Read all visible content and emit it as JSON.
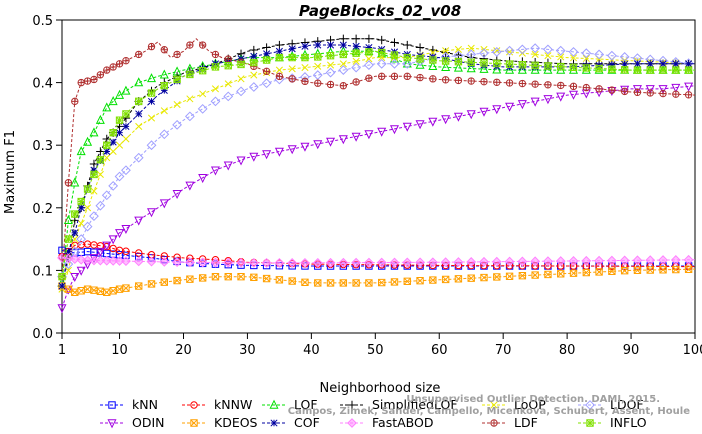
{
  "chart_data": {
    "type": "line",
    "title": "PageBlocks_02_v08",
    "xlabel": "Neighborhood size",
    "ylabel": "Maximum F1",
    "xlim": [
      1,
      100
    ],
    "ylim": [
      0,
      0.5
    ],
    "xticks": [
      1,
      10,
      20,
      30,
      40,
      50,
      60,
      70,
      80,
      90,
      100
    ],
    "yticks": [
      "0.0",
      "0.1",
      "0.2",
      "0.3",
      "0.4",
      "0.5"
    ],
    "grid": false,
    "legend_position": "bottom",
    "credit": [
      "Campos, Zimek, Sander, Campello, Micenkova, Schubert, Assent, Houle",
      "Unsupervised Outlier Detection. DAMI, 2015."
    ],
    "series": [
      {
        "name": "kNN",
        "color": "#0000ff",
        "marker": "square",
        "line": "dash",
        "points": [
          [
            1,
            0.132
          ],
          [
            2,
            0.13
          ],
          [
            3,
            0.128
          ],
          [
            5,
            0.13
          ],
          [
            8,
            0.127
          ],
          [
            10,
            0.125
          ],
          [
            15,
            0.12
          ],
          [
            20,
            0.113
          ],
          [
            25,
            0.11
          ],
          [
            30,
            0.108
          ],
          [
            40,
            0.107
          ],
          [
            60,
            0.107
          ],
          [
            80,
            0.107
          ],
          [
            100,
            0.107
          ]
        ]
      },
      {
        "name": "kNNW",
        "color": "#ff0000",
        "marker": "circle",
        "line": "dash",
        "points": [
          [
            1,
            0.122
          ],
          [
            2,
            0.13
          ],
          [
            3,
            0.14
          ],
          [
            5,
            0.142
          ],
          [
            8,
            0.138
          ],
          [
            10,
            0.132
          ],
          [
            15,
            0.125
          ],
          [
            20,
            0.12
          ],
          [
            25,
            0.117
          ],
          [
            30,
            0.113
          ],
          [
            40,
            0.11
          ],
          [
            60,
            0.108
          ],
          [
            80,
            0.107
          ],
          [
            100,
            0.106
          ]
        ]
      },
      {
        "name": "LOF",
        "color": "#00e000",
        "marker": "triangle",
        "line": "dash",
        "points": [
          [
            1,
            0.08
          ],
          [
            2,
            0.18
          ],
          [
            3,
            0.24
          ],
          [
            4,
            0.29
          ],
          [
            6,
            0.32
          ],
          [
            8,
            0.36
          ],
          [
            10,
            0.38
          ],
          [
            13,
            0.4
          ],
          [
            16,
            0.41
          ],
          [
            20,
            0.42
          ],
          [
            25,
            0.43
          ],
          [
            30,
            0.44
          ],
          [
            35,
            0.44
          ],
          [
            40,
            0.445
          ],
          [
            45,
            0.45
          ],
          [
            50,
            0.45
          ],
          [
            55,
            0.43
          ],
          [
            60,
            0.425
          ],
          [
            70,
            0.42
          ],
          [
            80,
            0.42
          ],
          [
            90,
            0.42
          ],
          [
            100,
            0.42
          ]
        ]
      },
      {
        "name": "SimplifiedLOF",
        "color": "#000000",
        "marker": "plus",
        "line": "dash",
        "points": [
          [
            1,
            0.075
          ],
          [
            2,
            0.12
          ],
          [
            3,
            0.18
          ],
          [
            4,
            0.2
          ],
          [
            6,
            0.27
          ],
          [
            8,
            0.31
          ],
          [
            10,
            0.33
          ],
          [
            13,
            0.37
          ],
          [
            16,
            0.395
          ],
          [
            20,
            0.415
          ],
          [
            25,
            0.43
          ],
          [
            30,
            0.45
          ],
          [
            35,
            0.46
          ],
          [
            40,
            0.465
          ],
          [
            45,
            0.47
          ],
          [
            50,
            0.47
          ],
          [
            55,
            0.46
          ],
          [
            60,
            0.45
          ],
          [
            65,
            0.44
          ],
          [
            70,
            0.435
          ],
          [
            80,
            0.43
          ],
          [
            90,
            0.43
          ],
          [
            100,
            0.43
          ]
        ]
      },
      {
        "name": "LoOP",
        "color": "#e8e800",
        "marker": "cross",
        "line": "dash",
        "points": [
          [
            1,
            0.07
          ],
          [
            2,
            0.1
          ],
          [
            3,
            0.15
          ],
          [
            5,
            0.2
          ],
          [
            8,
            0.28
          ],
          [
            10,
            0.3
          ],
          [
            13,
            0.33
          ],
          [
            16,
            0.35
          ],
          [
            20,
            0.37
          ],
          [
            25,
            0.39
          ],
          [
            30,
            0.41
          ],
          [
            35,
            0.42
          ],
          [
            40,
            0.425
          ],
          [
            45,
            0.43
          ],
          [
            50,
            0.44
          ],
          [
            55,
            0.44
          ],
          [
            60,
            0.45
          ],
          [
            65,
            0.455
          ],
          [
            70,
            0.45
          ],
          [
            80,
            0.44
          ],
          [
            90,
            0.435
          ],
          [
            100,
            0.43
          ]
        ]
      },
      {
        "name": "LDOF",
        "color": "#a0a0ff",
        "marker": "diamond",
        "line": "dash",
        "points": [
          [
            1,
            0.09
          ],
          [
            2,
            0.11
          ],
          [
            3,
            0.13
          ],
          [
            5,
            0.17
          ],
          [
            8,
            0.22
          ],
          [
            10,
            0.25
          ],
          [
            13,
            0.28
          ],
          [
            16,
            0.31
          ],
          [
            20,
            0.34
          ],
          [
            25,
            0.37
          ],
          [
            30,
            0.39
          ],
          [
            35,
            0.405
          ],
          [
            40,
            0.41
          ],
          [
            45,
            0.42
          ],
          [
            50,
            0.43
          ],
          [
            55,
            0.43
          ],
          [
            60,
            0.44
          ],
          [
            65,
            0.445
          ],
          [
            70,
            0.45
          ],
          [
            75,
            0.455
          ],
          [
            80,
            0.45
          ],
          [
            90,
            0.44
          ],
          [
            100,
            0.43
          ]
        ]
      },
      {
        "name": "ODIN",
        "color": "#a000e0",
        "marker": "triangle-down",
        "line": "dash",
        "points": [
          [
            1,
            0.04
          ],
          [
            2,
            0.07
          ],
          [
            3,
            0.09
          ],
          [
            5,
            0.11
          ],
          [
            8,
            0.14
          ],
          [
            10,
            0.16
          ],
          [
            13,
            0.18
          ],
          [
            16,
            0.2
          ],
          [
            20,
            0.23
          ],
          [
            25,
            0.26
          ],
          [
            30,
            0.28
          ],
          [
            35,
            0.29
          ],
          [
            40,
            0.3
          ],
          [
            45,
            0.31
          ],
          [
            50,
            0.32
          ],
          [
            55,
            0.33
          ],
          [
            60,
            0.34
          ],
          [
            65,
            0.35
          ],
          [
            70,
            0.36
          ],
          [
            75,
            0.37
          ],
          [
            80,
            0.38
          ],
          [
            85,
            0.385
          ],
          [
            90,
            0.39
          ],
          [
            95,
            0.39
          ],
          [
            100,
            0.395
          ]
        ]
      },
      {
        "name": "KDEOS",
        "color": "#ffa000",
        "marker": "square-x",
        "line": "dash",
        "points": [
          [
            1,
            0.075
          ],
          [
            2,
            0.07
          ],
          [
            3,
            0.065
          ],
          [
            5,
            0.07
          ],
          [
            8,
            0.065
          ],
          [
            10,
            0.07
          ],
          [
            13,
            0.075
          ],
          [
            16,
            0.08
          ],
          [
            20,
            0.085
          ],
          [
            25,
            0.09
          ],
          [
            30,
            0.09
          ],
          [
            35,
            0.085
          ],
          [
            40,
            0.08
          ],
          [
            50,
            0.08
          ],
          [
            60,
            0.085
          ],
          [
            70,
            0.09
          ],
          [
            80,
            0.095
          ],
          [
            90,
            0.1
          ],
          [
            100,
            0.102
          ]
        ]
      },
      {
        "name": "COF",
        "color": "#0000a0",
        "marker": "star",
        "line": "dash",
        "points": [
          [
            1,
            0.075
          ],
          [
            2,
            0.13
          ],
          [
            3,
            0.16
          ],
          [
            4,
            0.2
          ],
          [
            6,
            0.26
          ],
          [
            8,
            0.29
          ],
          [
            10,
            0.32
          ],
          [
            13,
            0.35
          ],
          [
            16,
            0.38
          ],
          [
            20,
            0.41
          ],
          [
            25,
            0.43
          ],
          [
            30,
            0.44
          ],
          [
            35,
            0.45
          ],
          [
            40,
            0.46
          ],
          [
            45,
            0.46
          ],
          [
            50,
            0.455
          ],
          [
            55,
            0.445
          ],
          [
            60,
            0.44
          ],
          [
            65,
            0.43
          ],
          [
            70,
            0.425
          ],
          [
            80,
            0.425
          ],
          [
            90,
            0.43
          ],
          [
            100,
            0.43
          ]
        ]
      },
      {
        "name": "FastABOD",
        "color": "#ff80ff",
        "marker": "diamond-filled",
        "line": "dash",
        "points": [
          [
            1,
            0.12
          ],
          [
            3,
            0.118
          ],
          [
            5,
            0.116
          ],
          [
            10,
            0.115
          ],
          [
            20,
            0.113
          ],
          [
            30,
            0.112
          ],
          [
            40,
            0.112
          ],
          [
            60,
            0.113
          ],
          [
            80,
            0.115
          ],
          [
            100,
            0.117
          ]
        ]
      },
      {
        "name": "LDF",
        "color": "#b03030",
        "marker": "circle-plus",
        "line": "dash",
        "points": [
          [
            1,
            0.09
          ],
          [
            2,
            0.24
          ],
          [
            3,
            0.37
          ],
          [
            4,
            0.4
          ],
          [
            6,
            0.405
          ],
          [
            8,
            0.42
          ],
          [
            10,
            0.43
          ],
          [
            12,
            0.44
          ],
          [
            14,
            0.45
          ],
          [
            16,
            0.465
          ],
          [
            18,
            0.44
          ],
          [
            20,
            0.45
          ],
          [
            22,
            0.47
          ],
          [
            24,
            0.45
          ],
          [
            26,
            0.44
          ],
          [
            30,
            0.43
          ],
          [
            35,
            0.41
          ],
          [
            40,
            0.4
          ],
          [
            45,
            0.395
          ],
          [
            50,
            0.41
          ],
          [
            55,
            0.41
          ],
          [
            60,
            0.405
          ],
          [
            70,
            0.4
          ],
          [
            80,
            0.395
          ],
          [
            90,
            0.385
          ],
          [
            100,
            0.38
          ]
        ]
      },
      {
        "name": "INFLO",
        "color": "#80e000",
        "marker": "square-star",
        "line": "dash",
        "points": [
          [
            1,
            0.09
          ],
          [
            2,
            0.15
          ],
          [
            3,
            0.19
          ],
          [
            5,
            0.23
          ],
          [
            8,
            0.3
          ],
          [
            10,
            0.34
          ],
          [
            13,
            0.37
          ],
          [
            16,
            0.39
          ],
          [
            20,
            0.41
          ],
          [
            25,
            0.425
          ],
          [
            30,
            0.43
          ],
          [
            35,
            0.44
          ],
          [
            40,
            0.44
          ],
          [
            45,
            0.445
          ],
          [
            50,
            0.45
          ],
          [
            55,
            0.44
          ],
          [
            60,
            0.435
          ],
          [
            70,
            0.43
          ],
          [
            80,
            0.425
          ],
          [
            90,
            0.42
          ],
          [
            100,
            0.42
          ]
        ]
      }
    ],
    "legend_rows": [
      [
        "kNN",
        "kNNW",
        "LOF",
        "SimplifiedLOF",
        "LoOP",
        "LDOF"
      ],
      [
        "ODIN",
        "KDEOS",
        "COF",
        "FastABOD",
        "LDF",
        "INFLO"
      ]
    ]
  }
}
